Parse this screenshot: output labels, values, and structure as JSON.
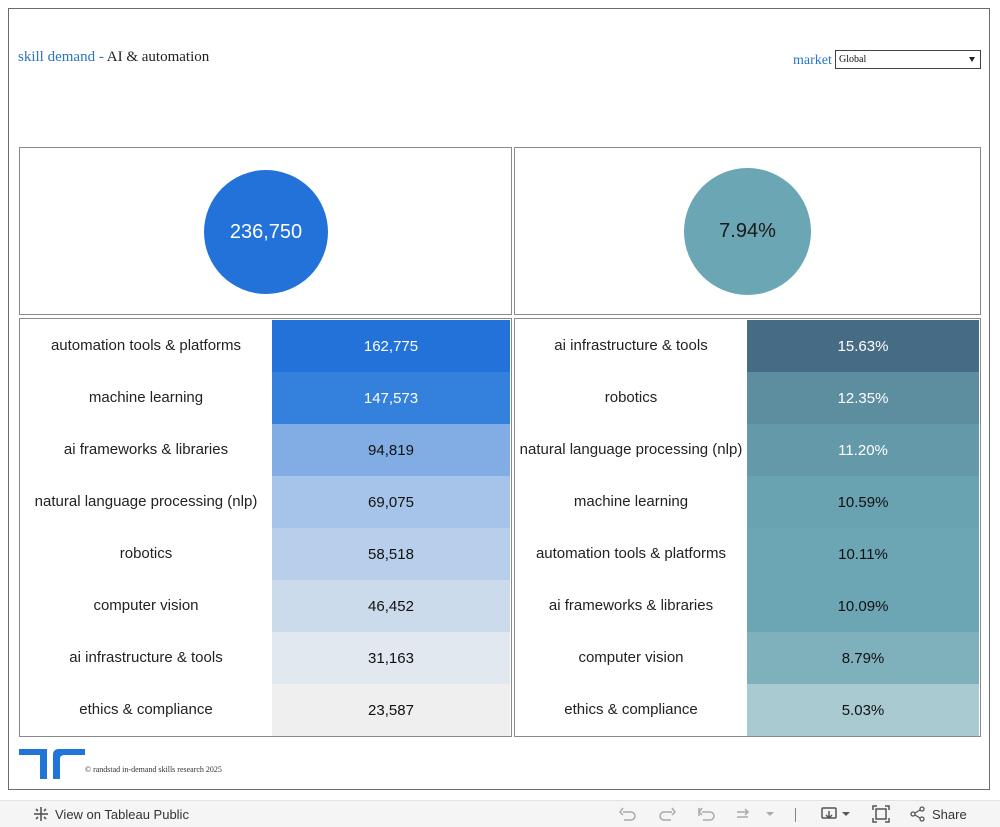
{
  "header": {
    "title_part1": "skill demand",
    "title_sep": "-",
    "title_part2": "AI & automation"
  },
  "filter": {
    "label": "market",
    "selected": "Global"
  },
  "kpis": {
    "total_value": "236,750",
    "growth_value": "7.94%"
  },
  "colors": {
    "kpi_left_circle": "#2272d9",
    "kpi_right_circle": "#6aa6b3",
    "title_accent": "#2a74c9"
  },
  "table_left": {
    "rows": [
      {
        "label": "automation tools & platforms",
        "value": "162,775",
        "color": "#2272d9",
        "text_color": "#ffffff"
      },
      {
        "label": "machine learning",
        "value": "147,573",
        "color": "#3381dd",
        "text_color": "#ffffff"
      },
      {
        "label": "ai frameworks & libraries",
        "value": "94,819",
        "color": "#81ade4",
        "text_color": "#111111"
      },
      {
        "label": "natural language processing (nlp)",
        "value": "69,075",
        "color": "#a6c4ea",
        "text_color": "#111111"
      },
      {
        "label": "robotics",
        "value": "58,518",
        "color": "#b7cfeb",
        "text_color": "#111111"
      },
      {
        "label": "computer vision",
        "value": "46,452",
        "color": "#ccdbec",
        "text_color": "#111111"
      },
      {
        "label": "ai infrastructure & tools",
        "value": "31,163",
        "color": "#e2e8ef",
        "text_color": "#111111"
      },
      {
        "label": "ethics & compliance",
        "value": "23,587",
        "color": "#efefef",
        "text_color": "#111111"
      }
    ]
  },
  "table_right": {
    "rows": [
      {
        "label": "ai infrastructure & tools",
        "value": "15.63%",
        "color": "#466b84",
        "text_color": "#ffffff"
      },
      {
        "label": "robotics",
        "value": "12.35%",
        "color": "#5c8ea0",
        "text_color": "#ffffff"
      },
      {
        "label": "natural language processing (nlp)",
        "value": "11.20%",
        "color": "#6399a9",
        "text_color": "#ffffff"
      },
      {
        "label": "machine learning",
        "value": "10.59%",
        "color": "#69a2b1",
        "text_color": "#111111"
      },
      {
        "label": "automation tools & platforms",
        "value": "10.11%",
        "color": "#6ca6b4",
        "text_color": "#111111"
      },
      {
        "label": "ai frameworks & libraries",
        "value": "10.09%",
        "color": "#6ca6b4",
        "text_color": "#111111"
      },
      {
        "label": "computer vision",
        "value": "8.79%",
        "color": "#7fb1bd",
        "text_color": "#111111"
      },
      {
        "label": "ethics & compliance",
        "value": "5.03%",
        "color": "#a9cad1",
        "text_color": "#111111"
      }
    ]
  },
  "footer": {
    "copyright": "© randstad in-demand skills research 2025"
  },
  "toolbar": {
    "view_label": "View on Tableau Public",
    "share_label": "Share"
  }
}
